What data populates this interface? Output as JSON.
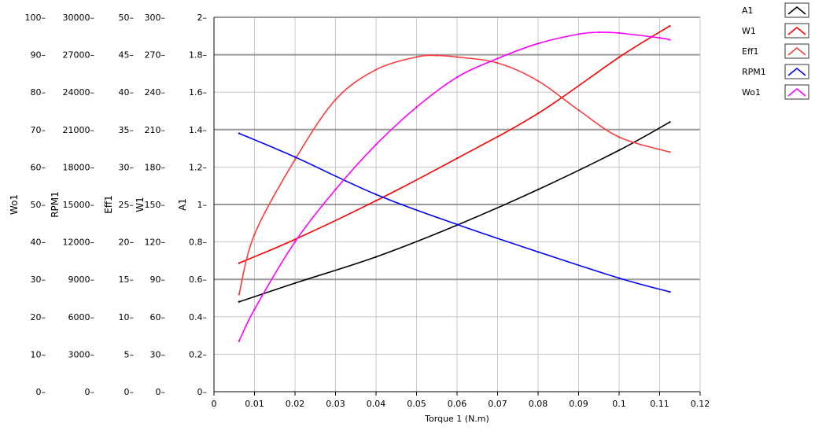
{
  "chart_data": {
    "type": "line",
    "xlabel": "Torque 1 (N.m)",
    "x_ticks": [
      "0",
      "0.01",
      "0.02",
      "0.03",
      "0.04",
      "0.05",
      "0.06",
      "0.07",
      "0.08",
      "0.09",
      "0.1",
      "0.11",
      "0.12"
    ],
    "xlim": [
      0,
      0.12
    ],
    "axes": [
      {
        "id": "Wo1",
        "label": "Wo1",
        "ylim": [
          0,
          100
        ],
        "ticks": [
          "0",
          "10",
          "20",
          "30",
          "40",
          "50",
          "60",
          "70",
          "80",
          "90",
          "100"
        ]
      },
      {
        "id": "RPM1",
        "label": "RPM1",
        "ylim": [
          0,
          30000
        ],
        "ticks": [
          "0",
          "3000",
          "6000",
          "9000",
          "12000",
          "15000",
          "18000",
          "21000",
          "24000",
          "27000",
          "30000"
        ]
      },
      {
        "id": "Eff1",
        "label": "Eff1",
        "ylim": [
          0,
          50
        ],
        "ticks": [
          "0",
          "5",
          "10",
          "15",
          "20",
          "25",
          "30",
          "35",
          "40",
          "45",
          "50"
        ]
      },
      {
        "id": "W1",
        "label": "W1",
        "ylim": [
          0,
          300
        ],
        "ticks": [
          "0",
          "30",
          "60",
          "90",
          "120",
          "150",
          "180",
          "210",
          "240",
          "270",
          "300"
        ]
      },
      {
        "id": "A1",
        "label": "A1",
        "ylim": [
          0,
          2
        ],
        "ticks": [
          "0",
          "0.2",
          "0.4",
          "0.6",
          "0.8",
          "1",
          "1.2",
          "1.4",
          "1.6",
          "1.8",
          "2"
        ]
      }
    ],
    "series": [
      {
        "name": "A1",
        "axis": "A1",
        "color": "#000000",
        "x": [
          0.0062,
          0.02,
          0.04,
          0.06,
          0.08,
          0.1,
          0.1125
        ],
        "y": [
          0.48,
          0.58,
          0.72,
          0.89,
          1.08,
          1.29,
          1.44
        ]
      },
      {
        "name": "W1",
        "axis": "W1",
        "color": "#ff0000",
        "x": [
          0.0062,
          0.02,
          0.04,
          0.06,
          0.08,
          0.1,
          0.1125
        ],
        "y": [
          103,
          122,
          153,
          187,
          223,
          268,
          293
        ]
      },
      {
        "name": "Eff1",
        "axis": "Eff1",
        "color": "#ff3c3c",
        "x": [
          0.0062,
          0.01,
          0.02,
          0.03,
          0.04,
          0.05,
          0.055,
          0.06,
          0.07,
          0.08,
          0.09,
          0.1,
          0.1125
        ],
        "y": [
          13,
          21,
          31,
          39,
          43,
          44.7,
          44.9,
          44.7,
          43.9,
          41.5,
          37.6,
          34,
          32
        ]
      },
      {
        "name": "RPM1",
        "axis": "RPM1",
        "color": "#0000ff",
        "x": [
          0.0062,
          0.02,
          0.04,
          0.06,
          0.08,
          0.1,
          0.1125
        ],
        "y": [
          20700,
          18800,
          15800,
          13400,
          11200,
          9100,
          8000
        ]
      },
      {
        "name": "Wo1",
        "axis": "Wo1",
        "color": "#ff00ff",
        "x": [
          0.0062,
          0.01,
          0.02,
          0.03,
          0.04,
          0.05,
          0.06,
          0.07,
          0.08,
          0.09,
          0.095,
          0.1,
          0.11,
          0.1125
        ],
        "y": [
          13.5,
          22,
          40,
          54,
          66,
          76,
          84,
          89,
          93,
          95.5,
          96,
          95.8,
          94.5,
          94
        ]
      }
    ],
    "legend": {
      "placement": "top-right",
      "entries": [
        "A1",
        "W1",
        "Eff1",
        "RPM1",
        "Wo1"
      ]
    },
    "grid": true
  }
}
